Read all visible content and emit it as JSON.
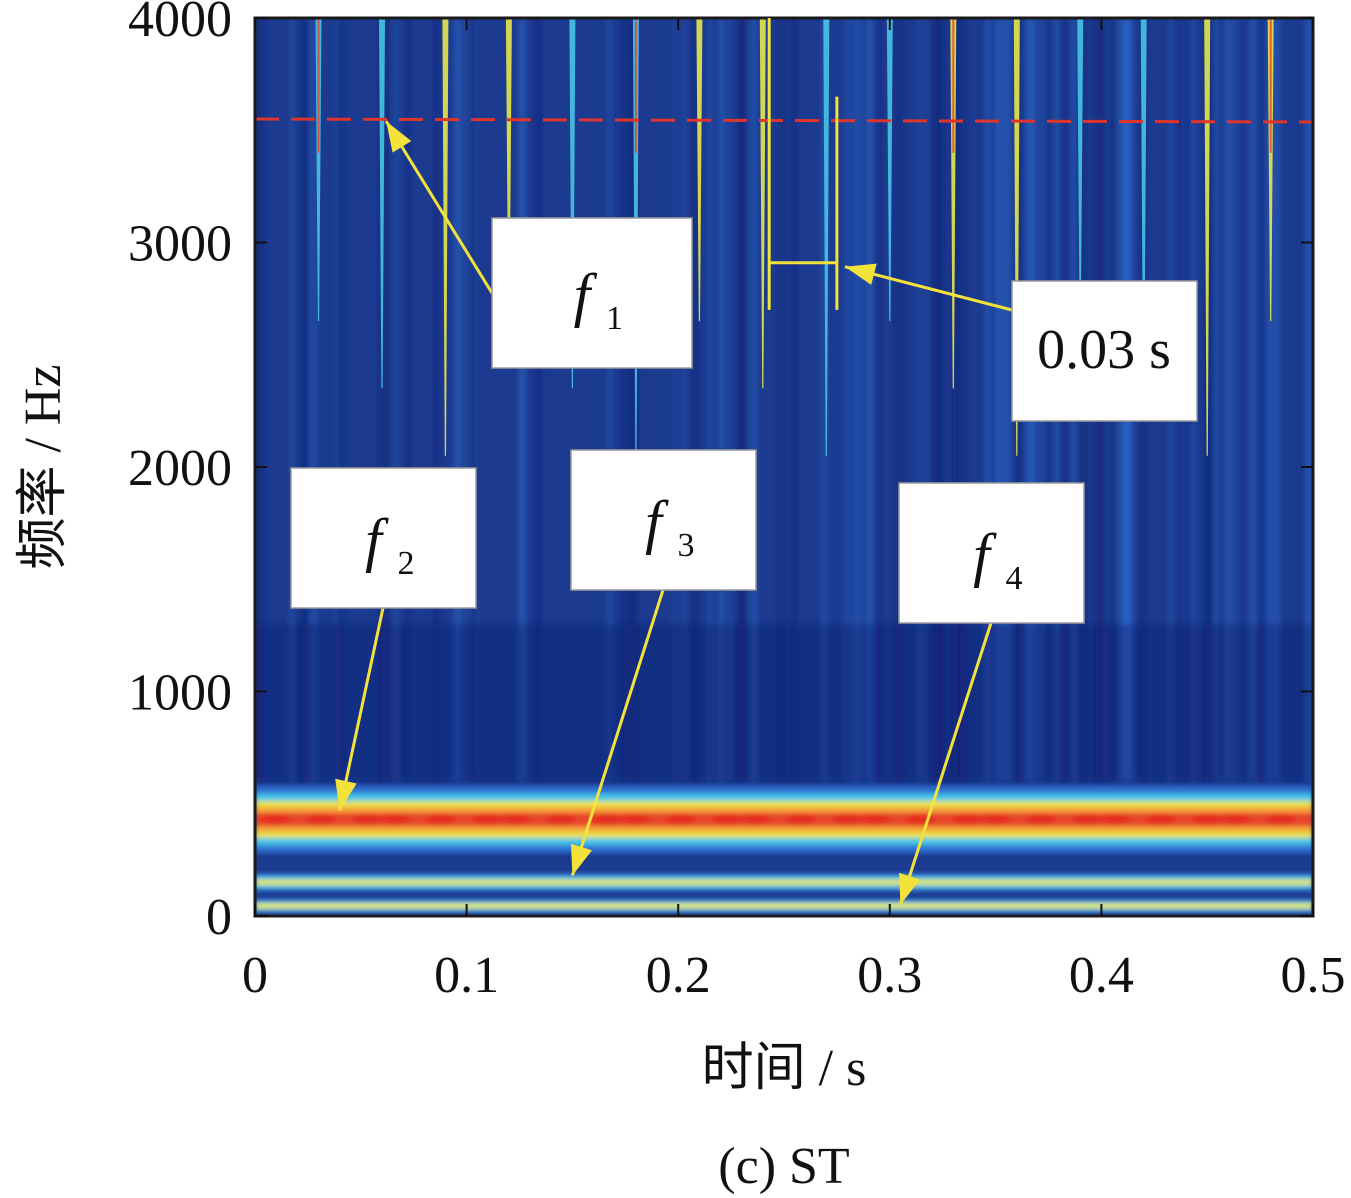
{
  "chart_data": {
    "type": "heatmap",
    "caption": "(c) ST",
    "xlabel": "时间 / s",
    "ylabel": "频率 / Hz",
    "xlim": [
      0,
      0.5
    ],
    "ylim": [
      0,
      4000
    ],
    "x_ticks": [
      "0",
      "0.1",
      "0.2",
      "0.3",
      "0.4",
      "0.5"
    ],
    "y_ticks": [
      "0",
      "1000",
      "2000",
      "3000",
      "4000"
    ],
    "colormap": [
      "#0d1b6e",
      "#1f3fa3",
      "#2f6fd1",
      "#47c4e6",
      "#e8e84a",
      "#f4a63a",
      "#e8452a"
    ],
    "background_color": "#1c3a8f",
    "bands": [
      {
        "name": "f2",
        "frequency": 430,
        "intensity": "high"
      },
      {
        "name": "f3",
        "frequency": 150,
        "intensity": "medium"
      },
      {
        "name": "f4",
        "frequency": 45,
        "intensity": "medium"
      }
    ],
    "impulse_times": [
      0.03,
      0.06,
      0.09,
      0.12,
      0.15,
      0.18,
      0.21,
      0.24,
      0.27,
      0.3,
      0.33,
      0.36,
      0.39,
      0.42,
      0.45,
      0.48
    ],
    "reference_line": {
      "frequency": 3550,
      "style": "dashed",
      "color": "#e0352b"
    },
    "interval_marker": {
      "t_start": 0.243,
      "t_end": 0.275,
      "frequency": 2910,
      "label": "0.03 s"
    },
    "annotations": [
      {
        "letter": "f",
        "sub": "1",
        "target_t": 0.062,
        "target_f": 3540
      },
      {
        "letter": "f",
        "sub": "2",
        "target_t": 0.04,
        "target_f": 470
      },
      {
        "letter": "f",
        "sub": "3",
        "target_t": 0.15,
        "target_f": 180
      },
      {
        "letter": "f",
        "sub": "4",
        "target_t": 0.305,
        "target_f": 50
      }
    ]
  }
}
